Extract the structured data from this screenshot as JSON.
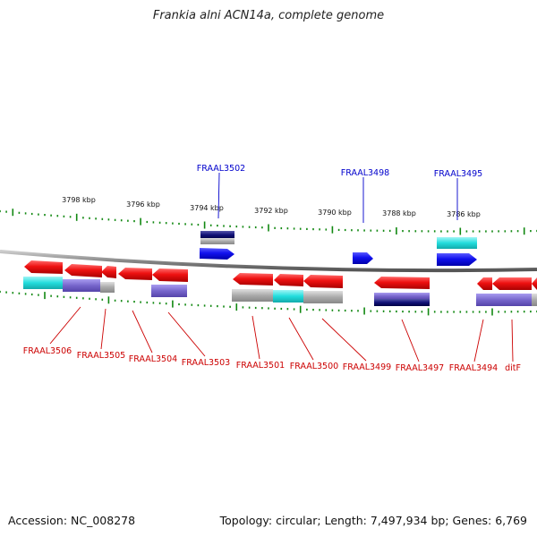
{
  "title": "Frankia alni ACN14a, complete genome",
  "footer": {
    "accession": "Accession: NC_008278",
    "summary": "Topology: circular; Length: 7,497,934 bp; Genes: 6,769"
  },
  "colors": {
    "backbone": "#888888",
    "tick": "#118811",
    "cds_red": "#ee1111",
    "cds_blue": "#1111ee",
    "cyan": "#22dddd",
    "slate": "#7766cc",
    "gray": "#aaaaaa",
    "navy": "#111188",
    "label_red": "#cc0000",
    "label_blue": "#0000cc"
  },
  "kbp_labels": [
    "3798 kbp",
    "3796 kbp",
    "3794 kbp",
    "3792 kbp",
    "3790 kbp",
    "3788 kbp",
    "3786 kbp"
  ],
  "genes_reverse": [
    "FRAAL3506",
    "FRAAL3505",
    "FRAAL3504",
    "FRAAL3503",
    "FRAAL3501",
    "FRAAL3500",
    "FRAAL3499",
    "FRAAL3497",
    "FRAAL3494",
    "ditF"
  ],
  "genes_forward": [
    "FRAAL3502",
    "FRAAL3498",
    "FRAAL3495"
  ]
}
